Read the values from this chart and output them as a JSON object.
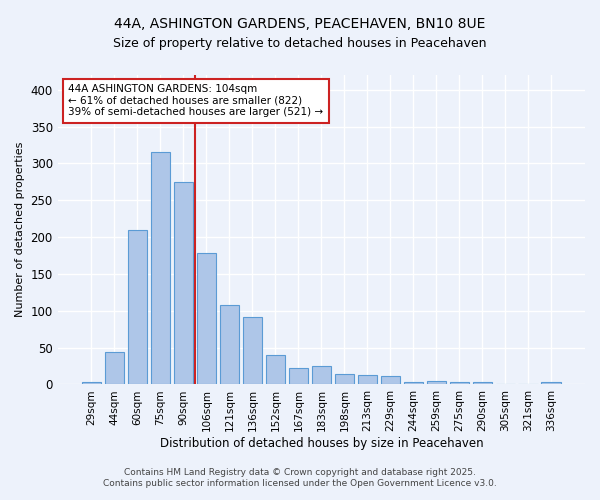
{
  "title_line1": "44A, ASHINGTON GARDENS, PEACEHAVEN, BN10 8UE",
  "title_line2": "Size of property relative to detached houses in Peacehaven",
  "xlabel": "Distribution of detached houses by size in Peacehaven",
  "ylabel": "Number of detached properties",
  "bar_labels": [
    "29sqm",
    "44sqm",
    "60sqm",
    "75sqm",
    "90sqm",
    "106sqm",
    "121sqm",
    "136sqm",
    "152sqm",
    "167sqm",
    "183sqm",
    "198sqm",
    "213sqm",
    "229sqm",
    "244sqm",
    "259sqm",
    "275sqm",
    "290sqm",
    "305sqm",
    "321sqm",
    "336sqm"
  ],
  "bar_values": [
    4,
    44,
    210,
    315,
    275,
    178,
    108,
    92,
    40,
    23,
    25,
    14,
    13,
    11,
    4,
    5,
    3,
    4,
    0,
    0,
    4
  ],
  "bar_color": "#aec6e8",
  "bar_edge_color": "#5b9bd5",
  "vline_x": 4.5,
  "vline_color": "#cc2222",
  "annotation_text": "44A ASHINGTON GARDENS: 104sqm\n← 61% of detached houses are smaller (822)\n39% of semi-detached houses are larger (521) →",
  "annotation_box_color": "#ffffff",
  "annotation_box_edge": "#cc2222",
  "ylim": [
    0,
    420
  ],
  "yticks": [
    0,
    50,
    100,
    150,
    200,
    250,
    300,
    350,
    400
  ],
  "background_color": "#edf2fb",
  "grid_color": "#ffffff",
  "footnote_line1": "Contains HM Land Registry data © Crown copyright and database right 2025.",
  "footnote_line2": "Contains public sector information licensed under the Open Government Licence v3.0."
}
